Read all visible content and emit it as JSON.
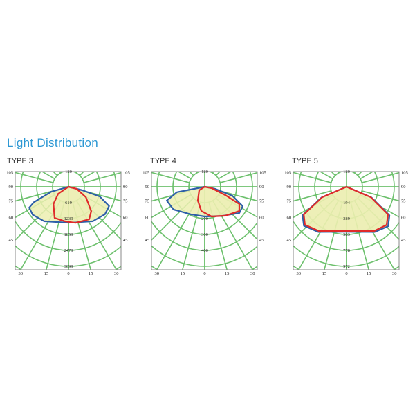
{
  "title": "Light Distribution",
  "chart_data": [
    {
      "type": "polar",
      "title": "TYPE 3",
      "top_label": "180",
      "side_labels": [
        "105",
        "90",
        "75",
        "60",
        "45"
      ],
      "side_angles": [
        105,
        90,
        75,
        60,
        45
      ],
      "bottom_labels": [
        "30",
        "15",
        "0",
        "15",
        "30"
      ],
      "ring_step": 619,
      "ring_labels": [
        "619",
        "1239",
        "1859",
        "2479",
        "3099"
      ],
      "series": [
        {
          "color": "#2e5fa8",
          "points": [
            [
              -74,
              700
            ],
            [
              -66,
              1480
            ],
            [
              -62,
              1730
            ],
            [
              -52,
              1770
            ],
            [
              -35,
              1640
            ],
            [
              0,
              1400
            ],
            [
              35,
              1640
            ],
            [
              53,
              1780
            ],
            [
              64.6,
              1750
            ],
            [
              72.7,
              1270
            ],
            [
              76,
              555
            ]
          ]
        },
        {
          "color": "#e02a2a",
          "points": [
            [
              -56,
              485
            ],
            [
              -41,
              890
            ],
            [
              -24,
              1330
            ],
            [
              -6,
              1350
            ],
            [
              11,
              1430
            ],
            [
              32.5,
              1500
            ],
            [
              43,
              1300
            ],
            [
              59,
              790
            ],
            [
              76,
              330
            ]
          ]
        }
      ]
    },
    {
      "type": "polar",
      "title": "TYPE 4",
      "top_label": "180",
      "side_labels": [
        "105",
        "90",
        "75",
        "60",
        "45"
      ],
      "side_angles": [
        105,
        90,
        75,
        60,
        45
      ],
      "bottom_labels": [
        "30",
        "15",
        "0",
        "15",
        "30"
      ],
      "ring_step": 100,
      "ring_labels": [
        "",
        "200",
        "300",
        "400",
        ""
      ],
      "series": [
        {
          "color": "#2e5fa8",
          "points": [
            [
              -79,
              178
            ],
            [
              -70,
              254
            ],
            [
              -54,
              243
            ],
            [
              -26.6,
              194
            ],
            [
              0,
              187
            ],
            [
              30.8,
              213
            ],
            [
              52.8,
              273
            ],
            [
              63,
              268
            ],
            [
              72,
              183
            ],
            [
              78.7,
              67
            ]
          ]
        },
        {
          "color": "#e02a2a",
          "points": [
            [
              -58,
              41
            ],
            [
              -26.6,
              97
            ],
            [
              -8,
              154
            ],
            [
              13,
              192
            ],
            [
              35.5,
              224
            ],
            [
              55,
              265
            ],
            [
              63.4,
              243
            ],
            [
              68,
              140
            ],
            [
              79,
              44
            ]
          ]
        }
      ]
    },
    {
      "type": "polar",
      "title": "TYPE 5",
      "top_label": "180",
      "side_labels": [
        "105",
        "90",
        "75",
        "60",
        "45"
      ],
      "side_angles": [
        105,
        90,
        75,
        60,
        45
      ],
      "bottom_labels": [
        "30",
        "15",
        "0",
        "15",
        "30"
      ],
      "ring_step": 194,
      "ring_labels": [
        "194",
        "389",
        "583",
        "778",
        "972"
      ],
      "series": [
        {
          "color": "#2e5fa8",
          "points": [
            [
              -66.8,
              330
            ],
            [
              -57,
              640
            ],
            [
              -47.5,
              705
            ],
            [
              -32,
              650
            ],
            [
              0,
              550
            ],
            [
              32,
              650
            ],
            [
              46.5,
              700
            ],
            [
              56.3,
              630
            ],
            [
              66.8,
              330
            ]
          ]
        },
        {
          "color": "#e02a2a",
          "points": [
            [
              -66.8,
              321
            ],
            [
              -57,
              622
            ],
            [
              -47.5,
              687
            ],
            [
              -32,
              637
            ],
            [
              0,
              540
            ],
            [
              32,
              637
            ],
            [
              46.5,
              675
            ],
            [
              56.3,
              608
            ],
            [
              66.8,
              321
            ]
          ]
        }
      ]
    }
  ],
  "colors": {
    "grid": "#6cc06c",
    "fill": "#eceeb0",
    "frame": "#888888",
    "title": "#2b97d3"
  }
}
